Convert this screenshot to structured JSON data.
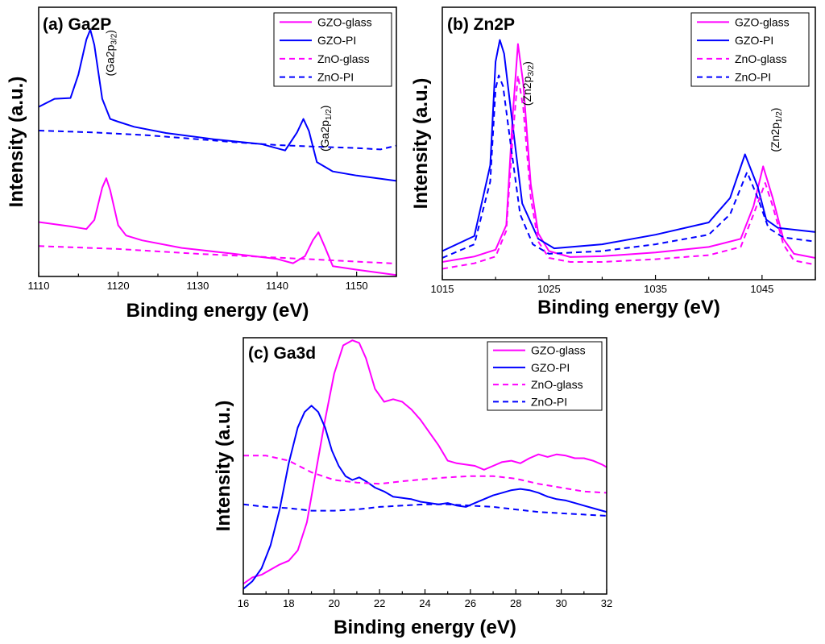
{
  "chart_data": [
    {
      "type": "line",
      "title": "(a) Ga2P",
      "xlabel": "Binding energy (eV)",
      "ylabel": "Intensity (a.u.)",
      "xlim": [
        1110,
        1155
      ],
      "ylim": [
        0,
        100
      ],
      "xticks": [
        1110,
        1120,
        1130,
        1140,
        1150
      ],
      "y_ticks_labeled": false,
      "legend": {
        "position": "top-right",
        "entries": [
          "GZO-glass",
          "GZO-PI",
          "ZnO-glass",
          "ZnO-PI"
        ]
      },
      "peak_labels": [
        {
          "base": "(Ga2p",
          "sub": "3/2",
          "close": ")",
          "x": 1119.5,
          "y": 83
        },
        {
          "base": "(Ga2p",
          "sub": "1/2",
          "close": ")",
          "x": 1146.5,
          "y": 55
        }
      ],
      "series": [
        {
          "name": "GZO-glass",
          "color": "#ff00ff",
          "dash": "solid",
          "x": [
            1110,
            1114,
            1116,
            1117,
            1118,
            1118.5,
            1119,
            1120,
            1121,
            1123,
            1128,
            1134,
            1140,
            1142,
            1143.5,
            1144.5,
            1145.2,
            1146,
            1147,
            1150,
            1155
          ],
          "y": [
            20.2,
            18.6,
            17.6,
            21,
            33,
            36.5,
            32,
            19,
            15.2,
            13.4,
            10.6,
            8.6,
            6.5,
            4.9,
            7.5,
            13.5,
            16.4,
            11,
            3.8,
            2.5,
            0.5
          ]
        },
        {
          "name": "GZO-PI",
          "color": "#0000ff",
          "dash": "solid",
          "x": [
            1110,
            1112,
            1114,
            1115,
            1116,
            1116.5,
            1117,
            1118,
            1119,
            1120,
            1122,
            1126,
            1132,
            1138,
            1141,
            1142.5,
            1143.3,
            1144,
            1145,
            1147,
            1150,
            1155
          ],
          "y": [
            63,
            66,
            66.3,
            75,
            88,
            91.7,
            86,
            66,
            58.5,
            57.5,
            55.6,
            53.3,
            51,
            49.2,
            46.8,
            53.5,
            58.5,
            54,
            42.5,
            39,
            37.5,
            35.5
          ]
        },
        {
          "name": "ZnO-glass",
          "color": "#ff00ff",
          "dash": "dashed",
          "x": [
            1110,
            1120,
            1130,
            1140,
            1145,
            1150,
            1155
          ],
          "y": [
            11.3,
            10.2,
            8.4,
            7,
            6.3,
            5.5,
            4.8
          ]
        },
        {
          "name": "ZnO-PI",
          "color": "#0000ff",
          "dash": "dashed",
          "x": [
            1110,
            1117,
            1124,
            1130,
            1135,
            1140,
            1145,
            1150,
            1153,
            1155
          ],
          "y": [
            54.2,
            53.5,
            52.4,
            51,
            49.8,
            48.8,
            48.2,
            47.7,
            47.2,
            48.6
          ]
        }
      ]
    },
    {
      "type": "line",
      "title": "(b) Zn2P",
      "xlabel": "Binding energy (eV)",
      "ylabel": "Intensity (a.u.)",
      "xlim": [
        1015,
        1050
      ],
      "ylim": [
        0,
        100
      ],
      "xticks": [
        1015,
        1025,
        1035,
        1045
      ],
      "y_ticks_labeled": false,
      "legend": {
        "position": "top-right",
        "entries": [
          "GZO-glass",
          "GZO-PI",
          "ZnO-glass",
          "ZnO-PI"
        ]
      },
      "peak_labels": [
        {
          "base": "(Zn2p",
          "sub": "3/2",
          "close": ")",
          "x": 1023.3,
          "y": 72
        },
        {
          "base": "(Zn2p",
          "sub": "1/2",
          "close": ")",
          "x": 1046.6,
          "y": 55
        }
      ],
      "series": [
        {
          "name": "GZO-glass",
          "color": "#ff00ff",
          "dash": "solid",
          "x": [
            1015,
            1018,
            1020,
            1021,
            1021.6,
            1022.1,
            1022.6,
            1023.3,
            1024,
            1025,
            1027,
            1030,
            1035,
            1040,
            1043,
            1044.2,
            1045.1,
            1046,
            1047,
            1048,
            1050
          ],
          "y": [
            6.5,
            8.5,
            11,
            20,
            60,
            86.5,
            72,
            35,
            17,
            10.5,
            8.3,
            8.6,
            10,
            12,
            15,
            27,
            41.6,
            30,
            15,
            9.5,
            8
          ]
        },
        {
          "name": "GZO-PI",
          "color": "#0000ff",
          "dash": "solid",
          "x": [
            1015,
            1018,
            1019.5,
            1020,
            1020.4,
            1020.8,
            1021.5,
            1022.5,
            1024,
            1025.5,
            1030,
            1035,
            1040,
            1042,
            1043.4,
            1044.6,
            1045.4,
            1046.5,
            1050
          ],
          "y": [
            10.5,
            16,
            42,
            80,
            88,
            83,
            60,
            28,
            15,
            11.5,
            13,
            16.5,
            21,
            30,
            46,
            34,
            22,
            19,
            17.5
          ]
        },
        {
          "name": "ZnO-glass",
          "color": "#ff00ff",
          "dash": "dashed",
          "x": [
            1015,
            1018,
            1020,
            1021,
            1021.6,
            1022.1,
            1022.6,
            1023.3,
            1024,
            1025,
            1027,
            1030,
            1035,
            1040,
            1043,
            1044.2,
            1045.3,
            1046,
            1047,
            1048,
            1050
          ],
          "y": [
            4,
            6,
            8.5,
            18,
            52,
            75,
            63,
            30,
            14,
            8,
            6.5,
            6.5,
            7.5,
            9,
            12,
            24,
            35.5,
            27,
            13,
            7,
            5.5
          ]
        },
        {
          "name": "ZnO-PI",
          "color": "#0000ff",
          "dash": "dashed",
          "x": [
            1015,
            1018,
            1019.5,
            1020,
            1020.3,
            1020.7,
            1021.4,
            1022.3,
            1023.5,
            1025,
            1030,
            1035,
            1040,
            1042,
            1043.6,
            1044.6,
            1045.6,
            1047,
            1050
          ],
          "y": [
            8,
            13,
            36,
            70,
            75,
            71,
            50,
            24,
            13,
            9.5,
            10.5,
            13,
            16.5,
            24,
            39.5,
            30,
            19,
            15.5,
            14
          ]
        }
      ]
    },
    {
      "type": "line",
      "title": "(c) Ga3d",
      "xlabel": "Binding energy (eV)",
      "ylabel": "Intensity (a.u.)",
      "xlim": [
        16,
        32
      ],
      "ylim": [
        0,
        100
      ],
      "xticks": [
        16,
        18,
        20,
        22,
        24,
        26,
        28,
        30,
        32
      ],
      "y_ticks_labeled": false,
      "legend": {
        "position": "top-right",
        "entries": [
          "GZO-glass",
          "GZO-PI",
          "ZnO-glass",
          "ZnO-PI"
        ]
      },
      "peak_labels": [],
      "series": [
        {
          "name": "GZO-glass",
          "color": "#ff00ff",
          "dash": "solid",
          "x": [
            16,
            16.4,
            16.8,
            17.2,
            17.6,
            18,
            18.4,
            18.8,
            19.2,
            19.6,
            20,
            20.4,
            20.8,
            21.1,
            21.4,
            21.8,
            22.2,
            22.6,
            23,
            23.4,
            23.8,
            24.2,
            24.6,
            25,
            25.4,
            25.8,
            26.2,
            26.6,
            27,
            27.4,
            27.8,
            28.2,
            28.6,
            29,
            29.4,
            29.8,
            30.2,
            30.6,
            31,
            31.4,
            31.8,
            32
          ],
          "y": [
            4,
            6.5,
            7.5,
            9.5,
            11.5,
            13,
            17,
            28,
            48,
            68,
            86,
            97,
            99,
            98,
            92,
            80,
            75,
            76,
            75,
            72,
            68,
            63,
            58,
            52,
            51,
            50.5,
            50,
            48.5,
            50,
            51.5,
            52,
            51,
            53,
            54.5,
            53.5,
            54.5,
            54,
            53,
            53,
            52,
            50.5,
            49.5
          ]
        },
        {
          "name": "GZO-PI",
          "color": "#0000ff",
          "dash": "solid",
          "x": [
            16,
            16.4,
            16.8,
            17.2,
            17.6,
            18,
            18.4,
            18.7,
            19,
            19.3,
            19.6,
            19.9,
            20.2,
            20.5,
            20.8,
            21.1,
            21.4,
            21.8,
            22.2,
            22.6,
            23,
            23.4,
            23.8,
            24.2,
            24.6,
            25,
            25.4,
            25.8,
            26.2,
            26.6,
            27,
            27.4,
            27.8,
            28.2,
            28.6,
            29,
            29.4,
            29.8,
            30.2,
            30.6,
            31,
            31.4,
            31.8,
            32
          ],
          "y": [
            2,
            5,
            10,
            19,
            33,
            51,
            65,
            71,
            73.5,
            71,
            65,
            56,
            50,
            46,
            44.5,
            45.5,
            44,
            41.5,
            40,
            38,
            37.5,
            37,
            36,
            35.5,
            35,
            35.5,
            34.5,
            34,
            35.5,
            37,
            38.5,
            39.5,
            40.5,
            41,
            40.5,
            39.5,
            38,
            37,
            36.5,
            35.5,
            34.5,
            33.5,
            32.5,
            32
          ]
        },
        {
          "name": "ZnO-glass",
          "color": "#ff00ff",
          "dash": "dashed",
          "x": [
            16,
            17,
            18,
            19,
            20,
            21,
            22,
            23,
            24,
            25,
            26,
            27,
            28,
            29,
            30,
            31,
            32
          ],
          "y": [
            54,
            54,
            52,
            47.5,
            44.5,
            43.5,
            43,
            44,
            44.8,
            45.5,
            46,
            46,
            45,
            43,
            41.5,
            40,
            39.5
          ]
        },
        {
          "name": "ZnO-PI",
          "color": "#0000ff",
          "dash": "dashed",
          "x": [
            16,
            17,
            18,
            19,
            20,
            21,
            22,
            23,
            24,
            25,
            26,
            27,
            28,
            29,
            30,
            31,
            32
          ],
          "y": [
            35,
            34,
            33.5,
            32.5,
            32.5,
            33,
            34,
            34.5,
            35,
            35,
            34.5,
            34,
            33,
            32,
            31.5,
            31,
            30.5
          ]
        }
      ]
    }
  ]
}
